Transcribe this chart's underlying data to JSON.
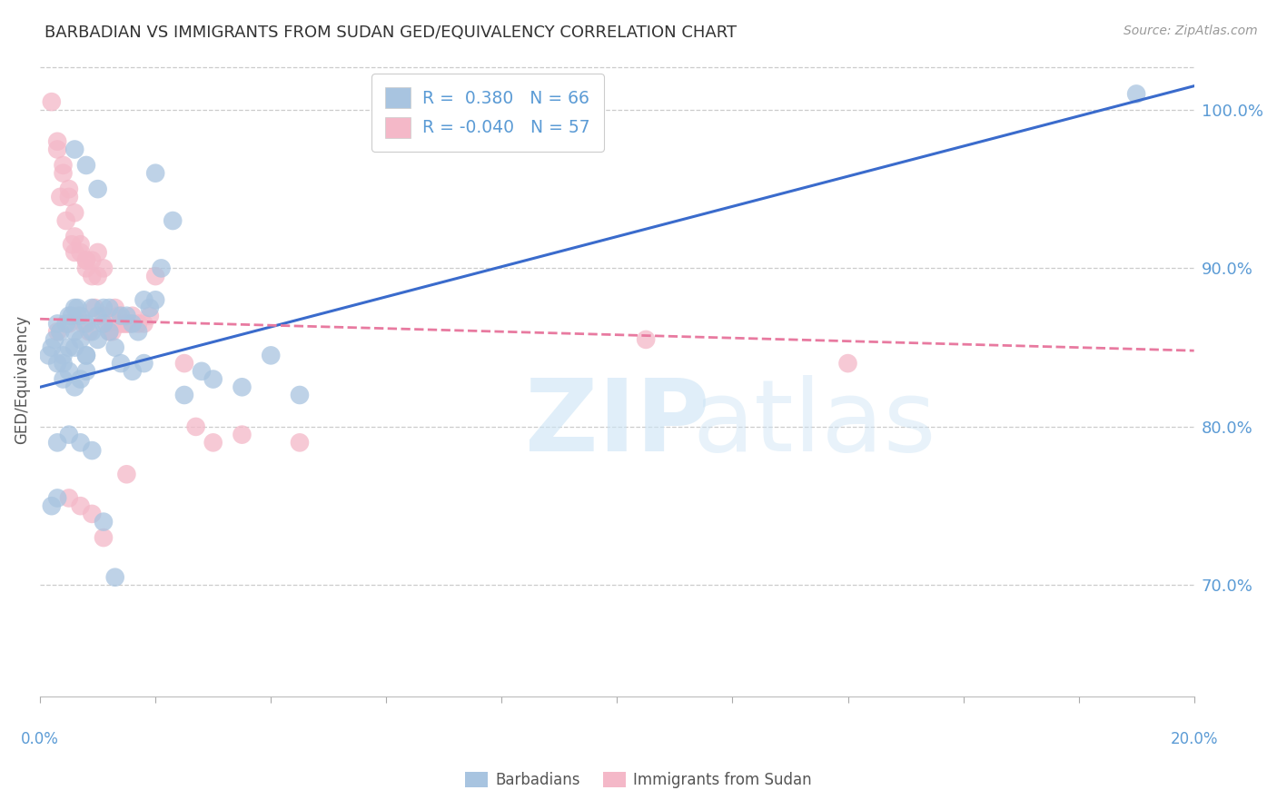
{
  "title": "BARBADIAN VS IMMIGRANTS FROM SUDAN GED/EQUIVALENCY CORRELATION CHART",
  "source": "Source: ZipAtlas.com",
  "ylabel": "GED/Equivalency",
  "xmin": 0.0,
  "xmax": 20.0,
  "ymin": 63.0,
  "ymax": 103.0,
  "ytick_vals": [
    70.0,
    80.0,
    90.0,
    100.0
  ],
  "blue_color": "#a8c4e0",
  "pink_color": "#f4b8c8",
  "blue_line_color": "#3a6bcc",
  "pink_line_color": "#e87aa0",
  "title_color": "#333333",
  "source_color": "#999999",
  "axis_label_color": "#5b9bd5",
  "blue_R": 0.38,
  "blue_N": 66,
  "pink_R": -0.04,
  "pink_N": 57,
  "blue_line_y0": 82.5,
  "blue_line_y1": 101.5,
  "pink_line_y0": 86.8,
  "pink_line_y1": 84.8,
  "blue_scatter_x": [
    0.3,
    0.4,
    0.5,
    0.5,
    0.6,
    0.6,
    0.7,
    0.7,
    0.8,
    0.8,
    0.9,
    0.9,
    1.0,
    1.0,
    1.1,
    1.1,
    1.2,
    1.2,
    1.3,
    1.4,
    1.5,
    1.6,
    1.7,
    1.8,
    1.9,
    2.0,
    2.1,
    2.3,
    0.2,
    0.15,
    0.25,
    0.35,
    0.45,
    0.55,
    0.65,
    0.3,
    0.4,
    0.5,
    0.6,
    0.7,
    0.8,
    1.4,
    1.6,
    1.8,
    3.5,
    4.0,
    0.3,
    0.5,
    0.7,
    0.9,
    1.1,
    1.3,
    0.2,
    0.3,
    19.0,
    4.5,
    2.5,
    3.0,
    2.8,
    2.0,
    0.6,
    0.8,
    1.0,
    0.4,
    0.6,
    0.8
  ],
  "blue_scatter_y": [
    86.5,
    84.0,
    87.0,
    85.0,
    86.0,
    87.5,
    85.5,
    87.0,
    84.5,
    86.5,
    86.0,
    87.5,
    85.5,
    87.0,
    87.5,
    86.5,
    86.0,
    87.5,
    85.0,
    87.0,
    87.0,
    86.5,
    86.0,
    88.0,
    87.5,
    88.0,
    90.0,
    93.0,
    85.0,
    84.5,
    85.5,
    86.0,
    86.5,
    87.0,
    87.5,
    84.0,
    83.0,
    83.5,
    82.5,
    83.0,
    83.5,
    84.0,
    83.5,
    84.0,
    82.5,
    84.5,
    79.0,
    79.5,
    79.0,
    78.5,
    74.0,
    70.5,
    75.0,
    75.5,
    101.0,
    82.0,
    82.0,
    83.0,
    83.5,
    96.0,
    97.5,
    96.5,
    95.0,
    84.5,
    85.0,
    84.5
  ],
  "pink_scatter_x": [
    0.2,
    0.3,
    0.3,
    0.4,
    0.4,
    0.5,
    0.5,
    0.6,
    0.6,
    0.7,
    0.7,
    0.8,
    0.8,
    0.9,
    0.9,
    1.0,
    1.0,
    1.1,
    1.1,
    1.2,
    1.2,
    1.3,
    1.4,
    1.5,
    1.6,
    1.7,
    1.8,
    1.9,
    2.0,
    0.35,
    0.45,
    0.55,
    0.65,
    0.75,
    0.85,
    0.95,
    1.15,
    1.25,
    1.35,
    1.45,
    1.55,
    2.5,
    2.7,
    3.0,
    3.5,
    4.5,
    10.5,
    14.0,
    0.5,
    0.7,
    0.9,
    1.1,
    1.5,
    0.6,
    0.8,
    0.3,
    0.5
  ],
  "pink_scatter_y": [
    100.5,
    98.0,
    97.5,
    96.5,
    96.0,
    94.5,
    95.0,
    93.5,
    92.0,
    91.0,
    91.5,
    90.5,
    90.0,
    90.5,
    89.5,
    89.5,
    91.0,
    90.0,
    87.0,
    86.5,
    86.0,
    87.5,
    86.5,
    86.5,
    87.0,
    86.5,
    86.5,
    87.0,
    89.5,
    94.5,
    93.0,
    91.5,
    87.0,
    86.5,
    86.0,
    87.5,
    86.5,
    86.0,
    87.0,
    86.5,
    86.5,
    84.0,
    80.0,
    79.0,
    79.5,
    79.0,
    85.5,
    84.0,
    75.5,
    75.0,
    74.5,
    73.0,
    77.0,
    91.0,
    90.5,
    86.0,
    86.5
  ]
}
